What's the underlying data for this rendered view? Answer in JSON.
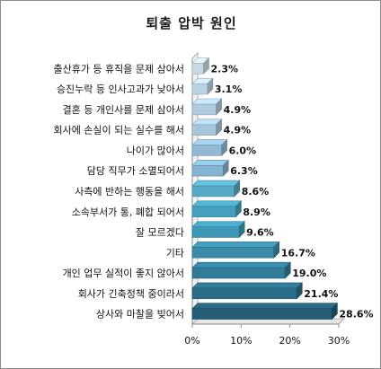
{
  "chart_data": {
    "type": "bar",
    "orientation": "horizontal",
    "title": "퇴출 압박 원인",
    "categories": [
      "출산휴가 등 휴직을 문제 삼아서",
      "승진누락 등 인사고과가 낮아서",
      "결혼 등 개인사를 문제 삼아서",
      "회사에 손실이 되는 실수를 해서",
      "나이가 많아서",
      "담당 직무가 소멸되어서",
      "사측에 반하는 행동을 해서",
      "소속부서가 통, 폐합 되어서",
      "잘 모르겠다",
      "기타",
      "개인 업무 실적이 좋지 않아서",
      "회사가 긴축정책 중이라서",
      "상사와 마찰을 빚어서"
    ],
    "values": [
      2.3,
      3.1,
      4.9,
      4.9,
      6.0,
      6.3,
      8.6,
      8.9,
      9.6,
      16.7,
      19.0,
      21.4,
      28.6
    ],
    "value_labels": [
      "2.3%",
      "3.1%",
      "4.9%",
      "4.9%",
      "6.0%",
      "6.3%",
      "8.6%",
      "8.9%",
      "9.6%",
      "16.7%",
      "19.0%",
      "21.4%",
      "28.6%"
    ],
    "xlim": [
      0,
      30
    ],
    "xticks": [
      "0%",
      "10%",
      "20%",
      "30%"
    ],
    "xlabel": "",
    "ylabel": "",
    "grid": false,
    "legend": "none",
    "bar_colors": [
      "#c8d9e6",
      "#bbd2e2",
      "#aecbde",
      "#a6c6db",
      "#90bad3",
      "#84b4cf",
      "#58a9c4",
      "#46a0bd",
      "#3f98b5",
      "#3a8aa8",
      "#327b98",
      "#2b6d88",
      "#245d75"
    ]
  }
}
